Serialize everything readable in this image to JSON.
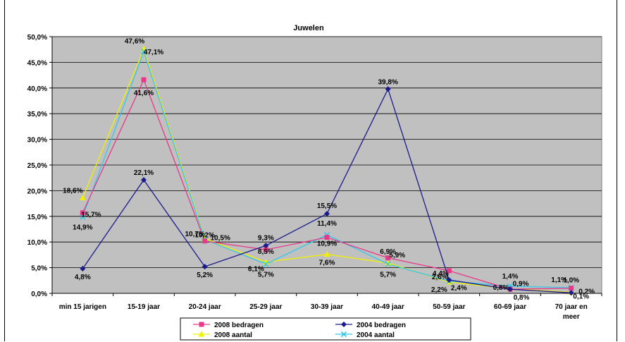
{
  "chart_data": {
    "type": "line",
    "title": "Juwelen",
    "xlabel": "",
    "ylabel": "",
    "ylim": [
      0,
      50
    ],
    "yticks": [
      "0,0%",
      "5,0%",
      "10,0%",
      "15,0%",
      "20,0%",
      "25,0%",
      "30,0%",
      "35,0%",
      "40,0%",
      "45,0%",
      "50,0%"
    ],
    "categories": [
      "min 15 jarigen",
      "15-19 jaar",
      "20-24 jaar",
      "25-29 jaar",
      "30-39 jaar",
      "40-49 jaar",
      "50-59 jaar",
      "60-69 jaar",
      "70 jaar en meer"
    ],
    "grid": true,
    "legend_position": "bottom",
    "series": [
      {
        "name": "2008   bedragen",
        "color": "#e8388a",
        "marker": "square",
        "values": [
          15.7,
          41.6,
          10.2,
          8.5,
          10.9,
          6.9,
          4.4,
          0.8,
          1.0
        ],
        "labels": [
          "15,7%",
          "41,6%",
          "10,2%",
          "8,5%",
          "10,9%",
          "6,9%",
          "4,4%",
          "0,8%",
          "1,0%"
        ]
      },
      {
        "name": "2004   bedragen",
        "color": "#1a1a8c",
        "marker": "diamond",
        "values": [
          4.8,
          22.1,
          5.2,
          9.3,
          15.5,
          39.8,
          2.6,
          0.8,
          0.1
        ],
        "labels": [
          "4,8%",
          "22,1%",
          "5,2%",
          "9,3%",
          "15,5%",
          "39,8%",
          "2,6%",
          "0,8%",
          "0,1%"
        ]
      },
      {
        "name": "2008   aantal",
        "color": "#f0f000",
        "marker": "triangle",
        "values": [
          18.6,
          47.6,
          10.7,
          6.1,
          7.6,
          5.9,
          2.2,
          0.9,
          0.2
        ],
        "labels": [
          "18,6%",
          "47,6%",
          "10,7%",
          "6,1%",
          "7,6%",
          "5,9%",
          "2,2%",
          "0,9%",
          "0,2%"
        ]
      },
      {
        "name": "2004   aantal",
        "color": "#33c8e8",
        "marker": "x",
        "values": [
          14.9,
          47.1,
          10.5,
          5.7,
          11.4,
          5.7,
          2.4,
          1.4,
          1.1
        ],
        "labels": [
          "14,9%",
          "47,1%",
          "10,5%",
          "5,7%",
          "11,4%",
          "5,7%",
          "2,4%",
          "1,4%",
          "1,1%"
        ]
      }
    ]
  }
}
